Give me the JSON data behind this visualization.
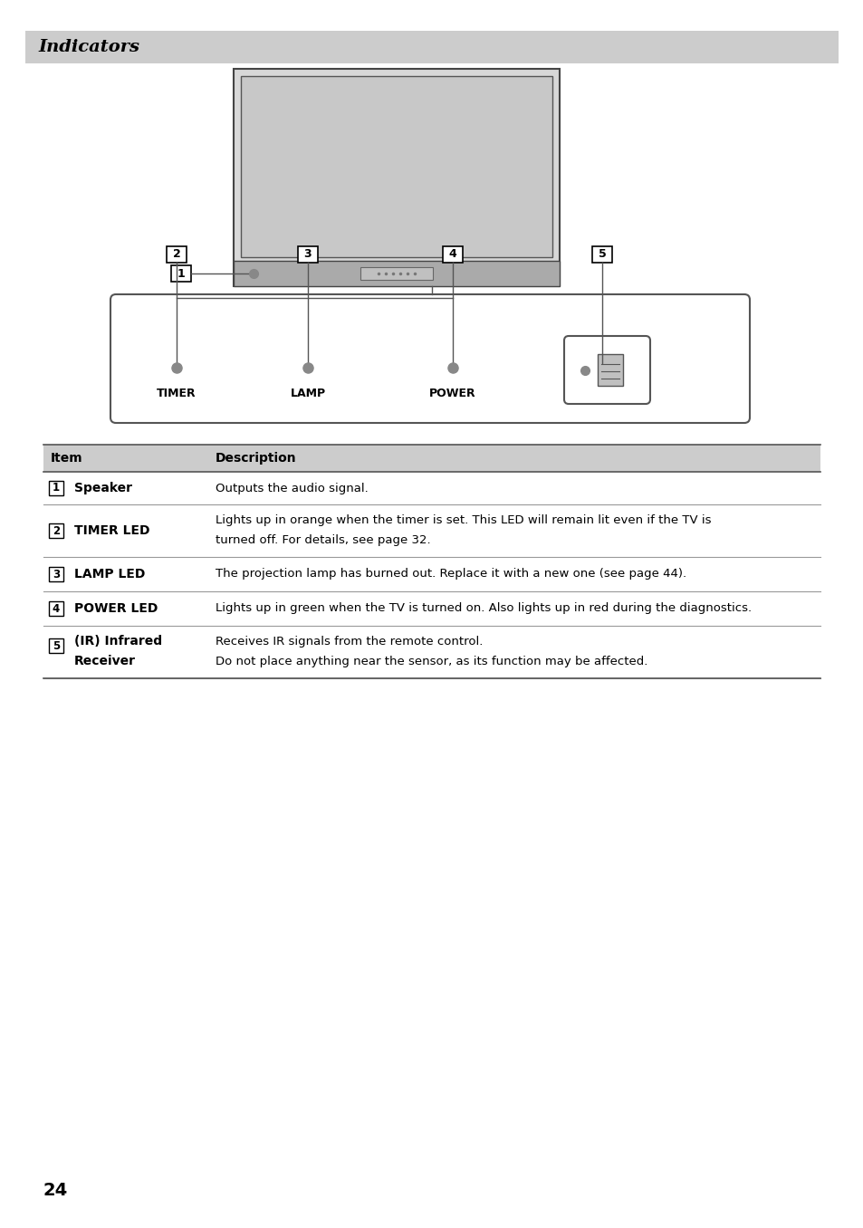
{
  "title": "Indicators",
  "title_bg": "#cccccc",
  "title_color": "#000000",
  "title_fontsize": 13,
  "page_number": "24",
  "table_header_bg": "#cccccc",
  "table_rows": [
    {
      "num": "1",
      "item_bold": "Speaker",
      "item_line2": "",
      "desc_line1": "Outputs the audio signal.",
      "desc_line2": ""
    },
    {
      "num": "2",
      "item_bold": "TIMER LED",
      "item_line2": "",
      "desc_line1": "Lights up in orange when the timer is set. This LED will remain lit even if the TV is",
      "desc_line2": "turned off. For details, see page 32."
    },
    {
      "num": "3",
      "item_bold": "LAMP LED",
      "item_line2": "",
      "desc_line1": "The projection lamp has burned out. Replace it with a new one (see page 44).",
      "desc_line2": ""
    },
    {
      "num": "4",
      "item_bold": "POWER LED",
      "item_line2": "",
      "desc_line1": "Lights up in green when the TV is turned on. Also lights up in red during the diagnostics.",
      "desc_line2": ""
    },
    {
      "num": "5",
      "item_bold": "(IR) Infrared",
      "item_line2": "Receiver",
      "desc_line1": "Receives IR signals from the remote control.",
      "desc_line2": "Do not place anything near the sensor, as its function may be affected."
    }
  ],
  "indicator_labels": [
    "TIMER",
    "LAMP",
    "POWER"
  ],
  "tv_facecolor": "#d8d8d8",
  "tv_screen_facecolor": "#c8c8c8",
  "panel_facecolor": "#b0b0b0",
  "led_color": "#888888",
  "line_color": "#555555"
}
